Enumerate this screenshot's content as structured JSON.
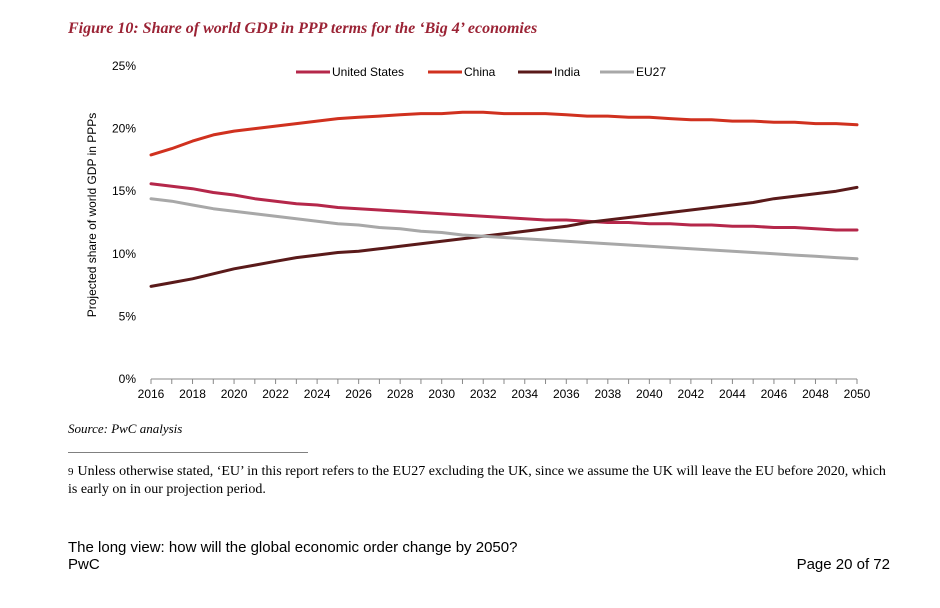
{
  "figure_title": "Figure 10: Share of world GDP in PPP terms for the ‘Big 4’ economies",
  "source": "Source: PwC analysis",
  "footnote": {
    "number": "9",
    "text": "Unless otherwise stated, ‘EU’ in this report refers to the EU27 excluding the UK, since we assume the UK will leave the EU before 2020, which is early on in our projection period."
  },
  "footer": {
    "title": "The long view: how will the global economic order change by 2050?",
    "org": "PwC",
    "page": "Page 20 of 72"
  },
  "chart_data": {
    "type": "line",
    "title": "",
    "xlabel": "",
    "ylabel": "Projected share of world GDP in PPPs",
    "x": [
      2016,
      2017,
      2018,
      2019,
      2020,
      2021,
      2022,
      2023,
      2024,
      2025,
      2026,
      2027,
      2028,
      2029,
      2030,
      2031,
      2032,
      2033,
      2034,
      2035,
      2036,
      2037,
      2038,
      2039,
      2040,
      2041,
      2042,
      2043,
      2044,
      2045,
      2046,
      2047,
      2048,
      2049,
      2050
    ],
    "xticks": [
      "2016",
      "2018",
      "2020",
      "2022",
      "2024",
      "2026",
      "2028",
      "2030",
      "2032",
      "2034",
      "2036",
      "2038",
      "2040",
      "2042",
      "2044",
      "2046",
      "2048",
      "2050"
    ],
    "yticks": [
      "0%",
      "5%",
      "10%",
      "15%",
      "20%",
      "25%"
    ],
    "ylim": [
      0,
      25
    ],
    "xlim": [
      2016,
      2050
    ],
    "grid": false,
    "legend_position": "top",
    "series": [
      {
        "name": "United States",
        "color": "#b5274a",
        "values": [
          15.6,
          15.4,
          15.2,
          14.9,
          14.7,
          14.4,
          14.2,
          14.0,
          13.9,
          13.7,
          13.6,
          13.5,
          13.4,
          13.3,
          13.2,
          13.1,
          13.0,
          12.9,
          12.8,
          12.7,
          12.7,
          12.6,
          12.5,
          12.5,
          12.4,
          12.4,
          12.3,
          12.3,
          12.2,
          12.2,
          12.1,
          12.1,
          12.0,
          11.9,
          11.9
        ]
      },
      {
        "name": "China",
        "color": "#d0311f",
        "values": [
          17.9,
          18.4,
          19.0,
          19.5,
          19.8,
          20.0,
          20.2,
          20.4,
          20.6,
          20.8,
          20.9,
          21.0,
          21.1,
          21.2,
          21.2,
          21.3,
          21.3,
          21.2,
          21.2,
          21.2,
          21.1,
          21.0,
          21.0,
          20.9,
          20.9,
          20.8,
          20.7,
          20.7,
          20.6,
          20.6,
          20.5,
          20.5,
          20.4,
          20.4,
          20.3
        ]
      },
      {
        "name": "India",
        "color": "#5a1a1a",
        "values": [
          7.4,
          7.7,
          8.0,
          8.4,
          8.8,
          9.1,
          9.4,
          9.7,
          9.9,
          10.1,
          10.2,
          10.4,
          10.6,
          10.8,
          11.0,
          11.2,
          11.4,
          11.6,
          11.8,
          12.0,
          12.2,
          12.5,
          12.7,
          12.9,
          13.1,
          13.3,
          13.5,
          13.7,
          13.9,
          14.1,
          14.4,
          14.6,
          14.8,
          15.0,
          15.3
        ]
      },
      {
        "name": "EU27",
        "color": "#a8a8a8",
        "values": [
          14.4,
          14.2,
          13.9,
          13.6,
          13.4,
          13.2,
          13.0,
          12.8,
          12.6,
          12.4,
          12.3,
          12.1,
          12.0,
          11.8,
          11.7,
          11.5,
          11.4,
          11.3,
          11.2,
          11.1,
          11.0,
          10.9,
          10.8,
          10.7,
          10.6,
          10.5,
          10.4,
          10.3,
          10.2,
          10.1,
          10.0,
          9.9,
          9.8,
          9.7,
          9.6
        ]
      }
    ]
  }
}
